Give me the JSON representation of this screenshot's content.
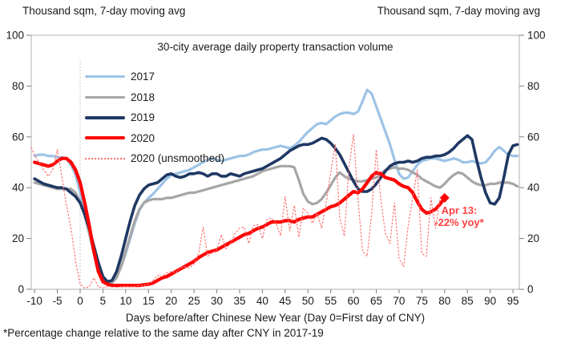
{
  "header": {
    "left_unit_label": "Thousand sqm, 7-day moving avg",
    "right_unit_label": "Thousand sqm, 7-day moving avg"
  },
  "footnote": "*Percentage change relative to the same day after CNY in 2017-19",
  "annotation": {
    "line1": "Apr 13:",
    "line2": "-22% yoy*",
    "color": "#ff4040"
  },
  "chart_data": {
    "type": "line",
    "title": "30-city average daily property transaction volume",
    "xlabel": "Days before/after Chinese New Year (Day 0=First day of CNY)",
    "ylabel_left": "Thousand sqm, 7-day moving avg",
    "ylabel_right": "Thousand sqm, 7-day moving avg",
    "xlim": [
      -10.73,
      96.4
    ],
    "ylim": [
      0,
      100
    ],
    "x_ticks": [
      -10,
      -5,
      0,
      5,
      10,
      15,
      20,
      25,
      30,
      35,
      40,
      45,
      50,
      55,
      60,
      65,
      70,
      75,
      80,
      85,
      90,
      95
    ],
    "y_ticks": [
      0,
      20,
      40,
      60,
      80,
      100
    ],
    "grid": false,
    "legend_position": "top-left-inside",
    "axis_color": "#bfbfbf",
    "tick_color": "#7f7f7f",
    "reference_line": {
      "x": 0,
      "y_min": 0,
      "y_max": 90,
      "style": "dotted",
      "color": "#b3b3b3"
    },
    "series": [
      {
        "name": "2017",
        "color": "#9dc3e6",
        "width": 3.2,
        "dash": "solid",
        "day_start": -10,
        "values": [
          52.5,
          53,
          53,
          52.5,
          52.5,
          52,
          52,
          51.5,
          49,
          45,
          38,
          30,
          22,
          14,
          8,
          4,
          2.5,
          3,
          5,
          9,
          14,
          20,
          26,
          31,
          34,
          36,
          37.5,
          39.5,
          41.5,
          43.5,
          45,
          45.5,
          46,
          46.5,
          47,
          48,
          49,
          50,
          51,
          51.5,
          51,
          50.5,
          51,
          51.5,
          52,
          52.5,
          52.5,
          53,
          54,
          54.5,
          55,
          55,
          55.5,
          56,
          56.5,
          56,
          55.5,
          56.5,
          58,
          60,
          62,
          63.5,
          65,
          65.5,
          65,
          66.5,
          68,
          69,
          69.5,
          69.5,
          69,
          70,
          74,
          78.5,
          77,
          72,
          67,
          62,
          57,
          51,
          45.5,
          43.5,
          44,
          46.5,
          49,
          50.5,
          51,
          51.5,
          51.5,
          51,
          50.5,
          51,
          51.5,
          51,
          50,
          50,
          50.5,
          50,
          49.5,
          50,
          52,
          54.5,
          56,
          54.5,
          53,
          52.5,
          52.5
        ]
      },
      {
        "name": "2018",
        "color": "#a6a6a6",
        "width": 3.2,
        "dash": "solid",
        "day_start": -10,
        "values": [
          42,
          41.5,
          41,
          40.5,
          40,
          39.5,
          39.5,
          39.5,
          39.5,
          38,
          34.5,
          29,
          22,
          15,
          9,
          4.5,
          2.5,
          2.5,
          4.5,
          9,
          15,
          21,
          27,
          31.5,
          34,
          35,
          35.5,
          35.5,
          35.5,
          36,
          36,
          36.5,
          37,
          37.5,
          38,
          38,
          38.5,
          39,
          39.5,
          40,
          40.5,
          41,
          41.5,
          42,
          42.5,
          43,
          43.5,
          44,
          44.5,
          45.5,
          46.5,
          47,
          47.5,
          48,
          48.5,
          48.5,
          48.5,
          48,
          43,
          37.5,
          34.5,
          33.5,
          34,
          35.5,
          38,
          41,
          44,
          46,
          44.5,
          43.5,
          43,
          42.5,
          42.5,
          43,
          43.5,
          44,
          45.5,
          47,
          47.5,
          48,
          47.5,
          47.5,
          47,
          46,
          45,
          43.5,
          42.5,
          41.5,
          40.5,
          40,
          41.5,
          43.5,
          45,
          46,
          45.5,
          44,
          42.5,
          41.5,
          41,
          41,
          41.5,
          41.5,
          42,
          42,
          42,
          41.5,
          40.5
        ]
      },
      {
        "name": "2019",
        "color": "#1f3864",
        "width": 3.6,
        "dash": "solid",
        "day_start": -10,
        "values": [
          43.5,
          42.5,
          41.5,
          41,
          40.5,
          40,
          40,
          39.5,
          38,
          36.5,
          34,
          29.5,
          24,
          17,
          10.5,
          5,
          3,
          3.5,
          7,
          13,
          20,
          27,
          33,
          37,
          39.5,
          41,
          41.5,
          42,
          43.5,
          45,
          45.5,
          44.5,
          44,
          44.5,
          45.5,
          45.5,
          46,
          45.5,
          44.5,
          45.5,
          45.5,
          44.5,
          44.5,
          45.5,
          45,
          44.5,
          45.5,
          46,
          46.5,
          47,
          47.5,
          48.5,
          49.5,
          50.5,
          51.5,
          53,
          54.5,
          55.5,
          56.5,
          57,
          57,
          57.5,
          58.5,
          59.5,
          59,
          57.5,
          55.5,
          53,
          49.5,
          46,
          42.5,
          39.5,
          38.5,
          38.5,
          39.5,
          41.5,
          44,
          46.5,
          48.5,
          49.5,
          50,
          50,
          50.5,
          50,
          50.5,
          51.5,
          52,
          52,
          52.5,
          52.5,
          53,
          54,
          55.5,
          57.5,
          59,
          60.5,
          59,
          51,
          44,
          38,
          34,
          33.5,
          36,
          44,
          53,
          56.5,
          57
        ]
      },
      {
        "name": "2020",
        "color": "#ff0000",
        "width": 4.2,
        "dash": "solid",
        "day_start": -10,
        "end_marker": "diamond",
        "values": [
          50,
          49.5,
          49,
          48.5,
          49,
          50.5,
          51.5,
          51.5,
          50,
          47,
          42,
          34,
          25,
          15,
          7,
          3,
          2,
          1.5,
          1.5,
          1.5,
          1.5,
          1.5,
          1.5,
          1.5,
          1.8,
          2,
          2.5,
          3.5,
          4.5,
          5,
          6,
          7,
          8,
          9,
          10,
          11,
          12.5,
          13.5,
          14.5,
          15,
          15.5,
          16.5,
          17.5,
          18.5,
          19.5,
          20.5,
          21.5,
          22,
          23,
          24,
          24.5,
          25.5,
          26.5,
          26.5,
          26.5,
          27,
          27,
          26.5,
          27.5,
          28,
          28.5,
          28.5,
          29.5,
          30.5,
          31.5,
          32.5,
          33,
          34,
          35.5,
          37,
          38.5,
          38,
          39.5,
          42,
          44.5,
          46,
          45.5,
          44,
          43.5,
          43,
          41.5,
          40.5,
          40,
          38,
          34.5,
          31.5,
          30,
          30.5,
          31.5,
          33.5,
          36
        ]
      },
      {
        "name": "2020 (unsmoothed)",
        "color": "#ff7373",
        "width": 1.2,
        "dash": "dotted",
        "day_start": -11,
        "values": [
          57,
          53,
          50,
          47,
          44.5,
          47,
          55,
          44,
          33,
          24,
          11,
          2,
          0.5,
          1,
          4.5,
          1,
          0.5,
          1,
          1,
          0.8,
          1,
          1.2,
          1,
          1.2,
          1.5,
          1.5,
          2,
          3.5,
          5.5,
          5,
          6.5,
          7,
          6.5,
          8.5,
          9,
          8.5,
          10,
          14,
          24.5,
          13,
          14.5,
          15.5,
          21.5,
          16,
          18,
          22,
          24,
          24.5,
          18,
          25,
          25.5,
          20,
          27.5,
          28,
          26,
          21,
          36.5,
          23,
          33,
          20.5,
          32,
          30,
          26,
          30,
          24,
          34,
          46,
          57,
          28,
          21,
          48,
          61,
          35,
          15,
          13,
          30,
          55,
          35,
          22,
          18,
          34,
          12,
          9,
          25,
          36,
          47,
          14,
          13,
          36,
          24,
          36
        ]
      }
    ]
  }
}
